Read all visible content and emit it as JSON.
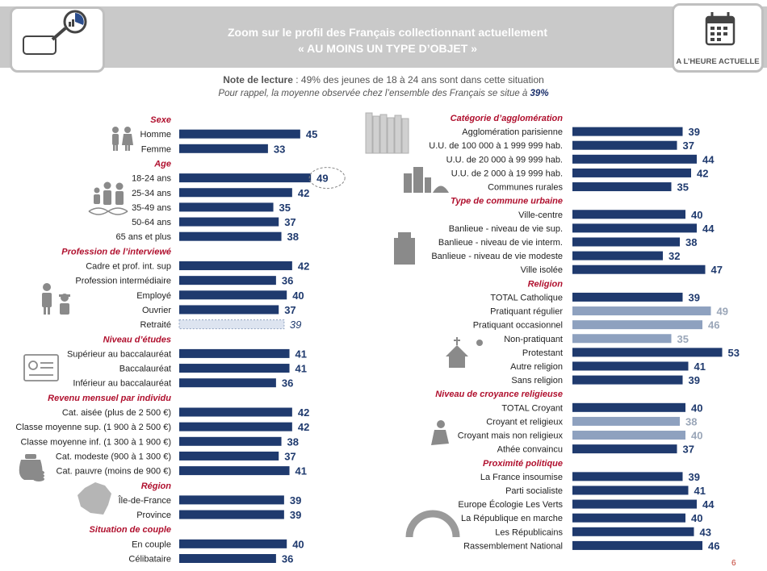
{
  "header": {
    "title_line1": "Zoom sur le profil des Français collectionnant actuellement",
    "title_line2": "« AU MOINS UN TYPE D’OBJET »",
    "badge": "A L’HEURE ACTUELLE"
  },
  "note": {
    "line1_bold": "Note de lecture",
    "line1_rest": " : 49% des jeunes de 18 à 24 ans sont dans cette situation",
    "line2_text": "Pour rappel, la moyenne observée chez l’ensemble des Français se situe à ",
    "line2_value": "39%"
  },
  "page_number": "6",
  "colors": {
    "bar": "#1f3a6e",
    "bar_light": "#8ea1bf",
    "section_title": "#b0102e",
    "text": "#222222",
    "header_band": "#c9c9c9"
  },
  "chart_data": {
    "type": "bar",
    "orientation": "horizontal",
    "average": 39,
    "left": [
      {
        "section": "Sexe",
        "items": [
          {
            "label": "Homme",
            "value": 45
          },
          {
            "label": "Femme",
            "value": 33
          }
        ]
      },
      {
        "section": "Age",
        "items": [
          {
            "label": "18-24 ans",
            "value": 49,
            "highlight": true
          },
          {
            "label": "25-34 ans",
            "value": 42
          },
          {
            "label": "35-49 ans",
            "value": 35
          },
          {
            "label": "50-64 ans",
            "value": 37
          },
          {
            "label": "65 ans et plus",
            "value": 38
          }
        ]
      },
      {
        "section": "Profession de l’interviewé",
        "items": [
          {
            "label": "Cadre et prof. int. sup",
            "value": 42
          },
          {
            "label": "Profession intermédiaire",
            "value": 36
          },
          {
            "label": "Employé",
            "value": 40
          },
          {
            "label": "Ouvrier",
            "value": 37
          },
          {
            "label": "Retraité",
            "value": 39,
            "style": "average"
          }
        ]
      },
      {
        "section": "Niveau d’études",
        "items": [
          {
            "label": "Supérieur au baccalauréat",
            "value": 41
          },
          {
            "label": "Baccalauréat",
            "value": 41
          },
          {
            "label": "Inférieur au baccalauréat",
            "value": 36
          }
        ]
      },
      {
        "section": "Revenu mensuel par individu",
        "items": [
          {
            "label": "Cat. aisée (plus de 2 500 €)",
            "value": 42
          },
          {
            "label": "Classe moyenne sup. (1 900 à 2 500 €)",
            "value": 42
          },
          {
            "label": "Classe moyenne inf. (1 300 à 1 900 €)",
            "value": 38
          },
          {
            "label": "Cat. modeste (900 à 1 300 €)",
            "value": 37
          },
          {
            "label": "Cat. pauvre (moins de 900 €)",
            "value": 41
          }
        ]
      },
      {
        "section": "Région",
        "items": [
          {
            "label": "Île-de-France",
            "value": 39
          },
          {
            "label": "Province",
            "value": 39
          }
        ]
      },
      {
        "section": "Situation de couple",
        "items": [
          {
            "label": "En couple",
            "value": 40
          },
          {
            "label": "Célibataire",
            "value": 36
          }
        ]
      }
    ],
    "right": [
      {
        "section": "Catégorie d’agglomération",
        "items": [
          {
            "label": "Agglomération parisienne",
            "value": 39
          },
          {
            "label": "U.U. de 100 000 à 1 999 999 hab.",
            "value": 37
          },
          {
            "label": "U.U. de 20 000 à 99 999 hab.",
            "value": 44
          },
          {
            "label": "U.U. de 2 000 à 19 999 hab.",
            "value": 42
          },
          {
            "label": "Communes rurales",
            "value": 35
          }
        ]
      },
      {
        "section": "Type de commune urbaine",
        "items": [
          {
            "label": "Ville-centre",
            "value": 40
          },
          {
            "label": "Banlieue - niveau de vie sup.",
            "value": 44
          },
          {
            "label": "Banlieue - niveau de vie interm.",
            "value": 38
          },
          {
            "label": "Banlieue - niveau de vie modeste",
            "value": 32
          },
          {
            "label": "Ville isolée",
            "value": 47
          }
        ]
      },
      {
        "section": "Religion",
        "items": [
          {
            "label": "TOTAL Catholique",
            "value": 39
          },
          {
            "label": "Pratiquant régulier",
            "value": 49,
            "style": "light"
          },
          {
            "label": "Pratiquant occasionnel",
            "value": 46,
            "style": "light"
          },
          {
            "label": "Non-pratiquant",
            "value": 35,
            "style": "light"
          },
          {
            "label": "Protestant",
            "value": 53
          },
          {
            "label": "Autre religion",
            "value": 41
          },
          {
            "label": "Sans religion",
            "value": 39
          }
        ]
      },
      {
        "section": "Niveau de croyance religieuse",
        "items": [
          {
            "label": "TOTAL Croyant",
            "value": 40
          },
          {
            "label": "Croyant et religieux",
            "value": 38,
            "style": "light"
          },
          {
            "label": "Croyant mais non religieux",
            "value": 40,
            "style": "light"
          },
          {
            "label": "Athée convaincu",
            "value": 37
          }
        ]
      },
      {
        "section": "Proximité politique",
        "items": [
          {
            "label": "La France insoumise",
            "value": 39
          },
          {
            "label": "Parti socialiste",
            "value": 41
          },
          {
            "label": "Europe Écologie Les Verts",
            "value": 44
          },
          {
            "label": "La République en marche",
            "value": 40
          },
          {
            "label": "Les Républicains",
            "value": 43
          },
          {
            "label": "Rassemblement National",
            "value": 46
          }
        ]
      }
    ],
    "icons": [
      "magnifier-chart-icon",
      "calendar-icon",
      "couple-icon",
      "age-group-icon",
      "dna-icon",
      "workers-icon",
      "diploma-icon",
      "money-bag-icon",
      "france-map-icon",
      "books-icon",
      "city-icon",
      "building-icon",
      "church-icon",
      "praying-person-icon",
      "hemicycle-icon"
    ]
  }
}
